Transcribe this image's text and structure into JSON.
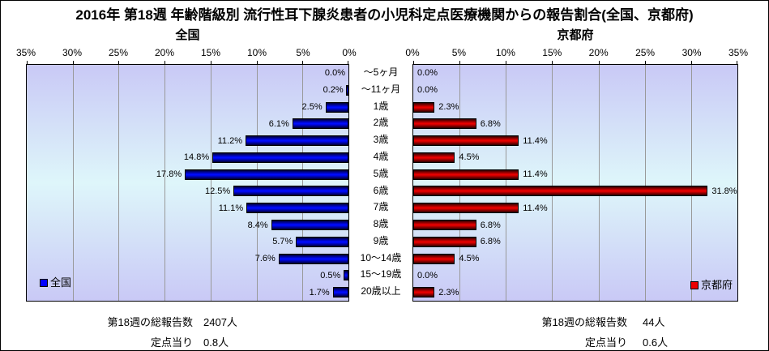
{
  "title": "2016年 第18週 年齢階級別 流行性耳下腺炎患者の小児科定点医療機関からの報告割合(全国、京都府)",
  "colors": {
    "national_bar": "#0000ff",
    "kyoto_bar": "#ee0000",
    "plot_bg_edge": "#c9c9f6",
    "plot_bg_mid": "#def6fa",
    "gridline": "#999999"
  },
  "chart_data": [
    {
      "type": "bar",
      "orientation": "horizontal",
      "title": "全国",
      "legend": "全国",
      "legend_position": "bottom-left",
      "axis_reversed": true,
      "xlim": [
        0,
        35
      ],
      "axis_ticks": [
        "35%",
        "30%",
        "25%",
        "20%",
        "15%",
        "10%",
        "5%",
        "0%"
      ],
      "categories": [
        "～5ヶ月",
        "～11ヶ月",
        "1歳",
        "2歳",
        "3歳",
        "4歳",
        "5歳",
        "6歳",
        "7歳",
        "8歳",
        "9歳",
        "10～14歳",
        "15～19歳",
        "20歳以上"
      ],
      "values": [
        0.0,
        0.2,
        2.5,
        6.1,
        11.2,
        14.8,
        17.8,
        12.5,
        11.1,
        8.4,
        5.7,
        7.6,
        0.5,
        1.7
      ],
      "labels": [
        "0.0%",
        "0.2%",
        "2.5%",
        "6.1%",
        "11.2%",
        "14.8%",
        "17.8%",
        "12.5%",
        "11.1%",
        "8.4%",
        "5.7%",
        "7.6%",
        "0.5%",
        "1.7%"
      ]
    },
    {
      "type": "bar",
      "orientation": "horizontal",
      "title": "京都府",
      "legend": "京都府",
      "legend_position": "bottom-right",
      "axis_reversed": false,
      "xlim": [
        0,
        35
      ],
      "axis_ticks": [
        "0%",
        "5%",
        "10%",
        "15%",
        "20%",
        "25%",
        "30%",
        "35%"
      ],
      "categories": [
        "～5ヶ月",
        "～11ヶ月",
        "1歳",
        "2歳",
        "3歳",
        "4歳",
        "5歳",
        "6歳",
        "7歳",
        "8歳",
        "9歳",
        "10～14歳",
        "15～19歳",
        "20歳以上"
      ],
      "values": [
        0.0,
        0.0,
        2.3,
        6.8,
        11.4,
        4.5,
        11.4,
        31.8,
        11.4,
        6.8,
        6.8,
        4.5,
        0.0,
        2.3
      ],
      "labels": [
        "0.0%",
        "0.0%",
        "2.3%",
        "6.8%",
        "11.4%",
        "4.5%",
        "11.4%",
        "31.8%",
        "11.4%",
        "6.8%",
        "6.8%",
        "4.5%",
        "0.0%",
        "2.3%"
      ]
    }
  ],
  "footers": {
    "left": {
      "report_label": "第18週の総報告数",
      "report_value": "2407人",
      "per_sentinel_label": "定点当り",
      "per_sentinel_value": "0.8人"
    },
    "right": {
      "report_label": "第18週の総報告数",
      "report_value": "44人",
      "per_sentinel_label": "定点当り",
      "per_sentinel_value": "0.6人"
    }
  }
}
